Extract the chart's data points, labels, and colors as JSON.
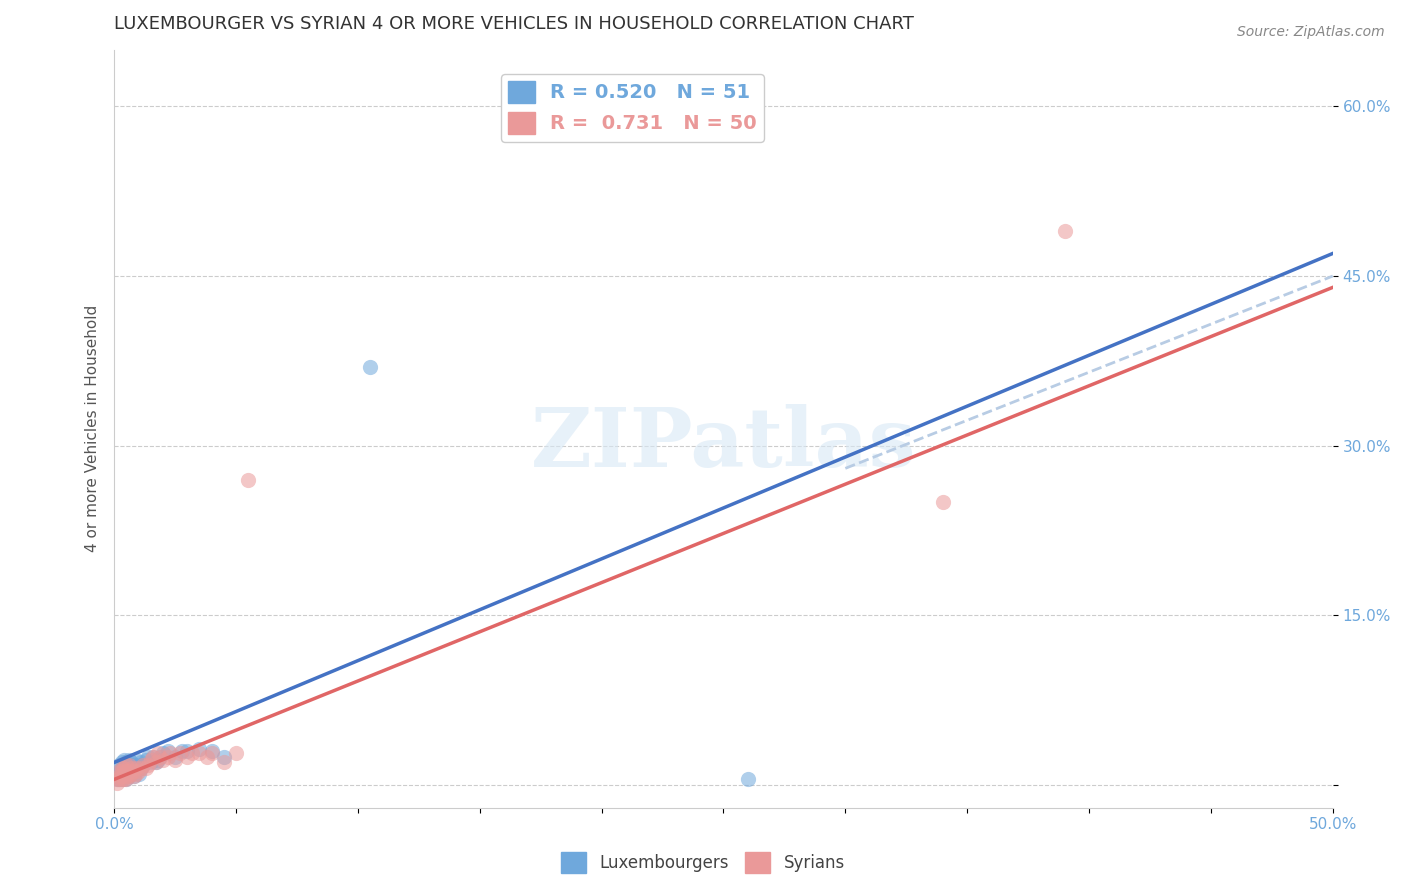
{
  "title": "LUXEMBOURGER VS SYRIAN 4 OR MORE VEHICLES IN HOUSEHOLD CORRELATION CHART",
  "source": "Source: ZipAtlas.com",
  "ylabel": "4 or more Vehicles in Household",
  "xlim": [
    0.0,
    0.5
  ],
  "ylim": [
    -0.02,
    0.65
  ],
  "xticks": [
    0.0,
    0.05,
    0.1,
    0.15,
    0.2,
    0.25,
    0.3,
    0.35,
    0.4,
    0.45,
    0.5
  ],
  "xtick_labels": [
    "0.0%",
    "",
    "",
    "",
    "",
    "",
    "",
    "",
    "",
    "",
    "50.0%"
  ],
  "ytick_positions": [
    0.0,
    0.15,
    0.3,
    0.45,
    0.6
  ],
  "ytick_labels": [
    "",
    "15.0%",
    "30.0%",
    "45.0%",
    "60.0%"
  ],
  "blue_R": "0.520",
  "blue_N": "51",
  "pink_R": "0.731",
  "pink_N": "50",
  "blue_color": "#6fa8dc",
  "pink_color": "#ea9999",
  "blue_line_color": "#4472c4",
  "pink_line_color": "#e06666",
  "dashed_line_color": "#b8cce4",
  "grid_color": "#cccccc",
  "watermark": "ZIPatlas",
  "legend_labels": [
    "Luxembourgers",
    "Syrians"
  ],
  "blue_scatter": [
    [
      0.001,
      0.005
    ],
    [
      0.001,
      0.01
    ],
    [
      0.002,
      0.005
    ],
    [
      0.002,
      0.012
    ],
    [
      0.002,
      0.018
    ],
    [
      0.003,
      0.005
    ],
    [
      0.003,
      0.008
    ],
    [
      0.003,
      0.015
    ],
    [
      0.003,
      0.02
    ],
    [
      0.004,
      0.008
    ],
    [
      0.004,
      0.012
    ],
    [
      0.004,
      0.018
    ],
    [
      0.004,
      0.022
    ],
    [
      0.005,
      0.005
    ],
    [
      0.005,
      0.01
    ],
    [
      0.005,
      0.015
    ],
    [
      0.005,
      0.02
    ],
    [
      0.006,
      0.008
    ],
    [
      0.006,
      0.012
    ],
    [
      0.006,
      0.018
    ],
    [
      0.006,
      0.022
    ],
    [
      0.007,
      0.01
    ],
    [
      0.007,
      0.015
    ],
    [
      0.007,
      0.02
    ],
    [
      0.008,
      0.008
    ],
    [
      0.008,
      0.012
    ],
    [
      0.008,
      0.018
    ],
    [
      0.009,
      0.015
    ],
    [
      0.009,
      0.022
    ],
    [
      0.01,
      0.01
    ],
    [
      0.01,
      0.018
    ],
    [
      0.011,
      0.015
    ],
    [
      0.011,
      0.02
    ],
    [
      0.012,
      0.018
    ],
    [
      0.013,
      0.022
    ],
    [
      0.014,
      0.025
    ],
    [
      0.015,
      0.02
    ],
    [
      0.016,
      0.025
    ],
    [
      0.017,
      0.02
    ],
    [
      0.018,
      0.022
    ],
    [
      0.019,
      0.025
    ],
    [
      0.02,
      0.028
    ],
    [
      0.022,
      0.03
    ],
    [
      0.025,
      0.025
    ],
    [
      0.028,
      0.03
    ],
    [
      0.03,
      0.03
    ],
    [
      0.035,
      0.032
    ],
    [
      0.04,
      0.03
    ],
    [
      0.045,
      0.025
    ],
    [
      0.105,
      0.37
    ],
    [
      0.26,
      0.005
    ]
  ],
  "pink_scatter": [
    [
      0.001,
      0.002
    ],
    [
      0.001,
      0.005
    ],
    [
      0.002,
      0.005
    ],
    [
      0.002,
      0.008
    ],
    [
      0.002,
      0.012
    ],
    [
      0.003,
      0.005
    ],
    [
      0.003,
      0.008
    ],
    [
      0.003,
      0.012
    ],
    [
      0.003,
      0.015
    ],
    [
      0.004,
      0.005
    ],
    [
      0.004,
      0.01
    ],
    [
      0.004,
      0.015
    ],
    [
      0.005,
      0.005
    ],
    [
      0.005,
      0.008
    ],
    [
      0.005,
      0.012
    ],
    [
      0.005,
      0.018
    ],
    [
      0.006,
      0.008
    ],
    [
      0.006,
      0.012
    ],
    [
      0.006,
      0.018
    ],
    [
      0.007,
      0.01
    ],
    [
      0.007,
      0.015
    ],
    [
      0.008,
      0.008
    ],
    [
      0.008,
      0.012
    ],
    [
      0.009,
      0.01
    ],
    [
      0.009,
      0.015
    ],
    [
      0.01,
      0.012
    ],
    [
      0.011,
      0.015
    ],
    [
      0.012,
      0.018
    ],
    [
      0.013,
      0.015
    ],
    [
      0.014,
      0.018
    ],
    [
      0.015,
      0.022
    ],
    [
      0.016,
      0.025
    ],
    [
      0.017,
      0.02
    ],
    [
      0.018,
      0.028
    ],
    [
      0.019,
      0.025
    ],
    [
      0.02,
      0.022
    ],
    [
      0.022,
      0.025
    ],
    [
      0.023,
      0.028
    ],
    [
      0.025,
      0.022
    ],
    [
      0.027,
      0.028
    ],
    [
      0.03,
      0.025
    ],
    [
      0.032,
      0.028
    ],
    [
      0.035,
      0.028
    ],
    [
      0.038,
      0.025
    ],
    [
      0.04,
      0.028
    ],
    [
      0.045,
      0.02
    ],
    [
      0.05,
      0.028
    ],
    [
      0.055,
      0.27
    ],
    [
      0.34,
      0.25
    ],
    [
      0.39,
      0.49
    ]
  ],
  "blue_trendline": [
    [
      0.0,
      0.02
    ],
    [
      0.5,
      0.47
    ]
  ],
  "pink_trendline": [
    [
      0.0,
      0.005
    ],
    [
      0.5,
      0.44
    ]
  ],
  "dashed_trendline": [
    [
      0.3,
      0.28
    ],
    [
      0.5,
      0.45
    ]
  ],
  "title_fontsize": 13,
  "source_fontsize": 10,
  "axis_label_fontsize": 11,
  "tick_fontsize": 11
}
